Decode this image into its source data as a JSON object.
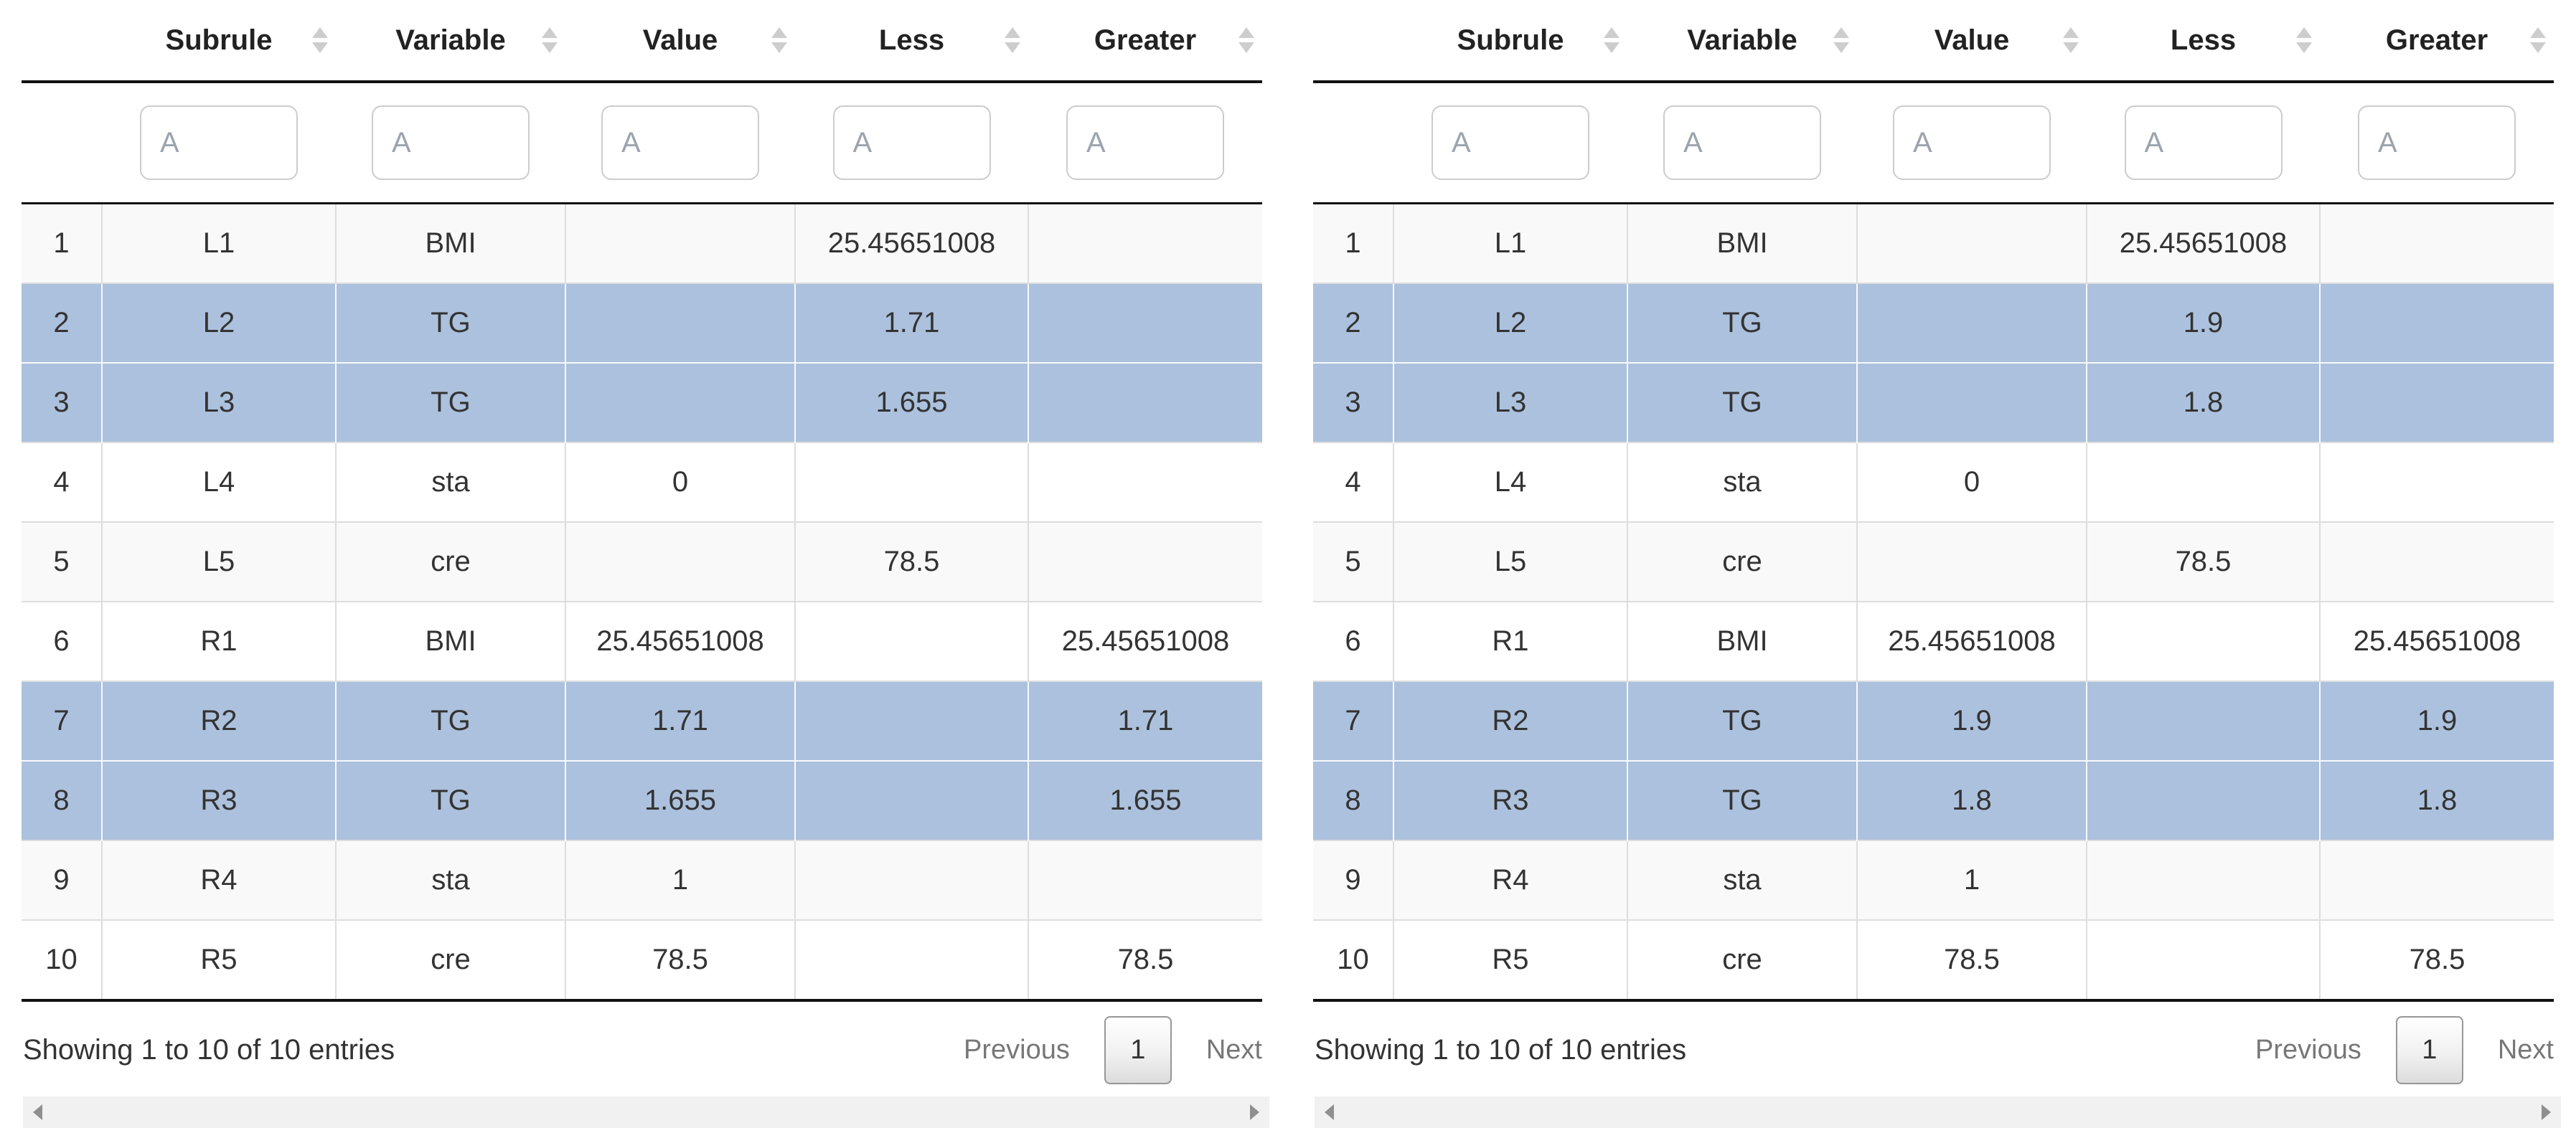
{
  "columns": [
    {
      "key": "index",
      "label": ""
    },
    {
      "key": "subrule",
      "label": "Subrule"
    },
    {
      "key": "variable",
      "label": "Variable"
    },
    {
      "key": "value",
      "label": "Value"
    },
    {
      "key": "less",
      "label": "Less"
    },
    {
      "key": "greater",
      "label": "Greater"
    }
  ],
  "filter_placeholder": "A",
  "panels": [
    {
      "name": "left",
      "rows": [
        {
          "index": "1",
          "subrule": "L1",
          "variable": "BMI",
          "value": "",
          "less": "25.45651008",
          "greater": "",
          "selected": false
        },
        {
          "index": "2",
          "subrule": "L2",
          "variable": "TG",
          "value": "",
          "less": "1.71",
          "greater": "",
          "selected": true
        },
        {
          "index": "3",
          "subrule": "L3",
          "variable": "TG",
          "value": "",
          "less": "1.655",
          "greater": "",
          "selected": true
        },
        {
          "index": "4",
          "subrule": "L4",
          "variable": "sta",
          "value": "0",
          "less": "",
          "greater": "",
          "selected": false
        },
        {
          "index": "5",
          "subrule": "L5",
          "variable": "cre",
          "value": "",
          "less": "78.5",
          "greater": "",
          "selected": false
        },
        {
          "index": "6",
          "subrule": "R1",
          "variable": "BMI",
          "value": "25.45651008",
          "less": "",
          "greater": "25.45651008",
          "selected": false
        },
        {
          "index": "7",
          "subrule": "R2",
          "variable": "TG",
          "value": "1.71",
          "less": "",
          "greater": "1.71",
          "selected": true
        },
        {
          "index": "8",
          "subrule": "R3",
          "variable": "TG",
          "value": "1.655",
          "less": "",
          "greater": "1.655",
          "selected": true
        },
        {
          "index": "9",
          "subrule": "R4",
          "variable": "sta",
          "value": "1",
          "less": "",
          "greater": "",
          "selected": false
        },
        {
          "index": "10",
          "subrule": "R5",
          "variable": "cre",
          "value": "78.5",
          "less": "",
          "greater": "78.5",
          "selected": false
        }
      ],
      "info": "Showing 1 to 10 of 10 entries",
      "pagination": {
        "previous": "Previous",
        "current": "1",
        "next": "Next"
      }
    },
    {
      "name": "right",
      "rows": [
        {
          "index": "1",
          "subrule": "L1",
          "variable": "BMI",
          "value": "",
          "less": "25.45651008",
          "greater": "",
          "selected": false
        },
        {
          "index": "2",
          "subrule": "L2",
          "variable": "TG",
          "value": "",
          "less": "1.9",
          "greater": "",
          "selected": true
        },
        {
          "index": "3",
          "subrule": "L3",
          "variable": "TG",
          "value": "",
          "less": "1.8",
          "greater": "",
          "selected": true
        },
        {
          "index": "4",
          "subrule": "L4",
          "variable": "sta",
          "value": "0",
          "less": "",
          "greater": "",
          "selected": false
        },
        {
          "index": "5",
          "subrule": "L5",
          "variable": "cre",
          "value": "",
          "less": "78.5",
          "greater": "",
          "selected": false
        },
        {
          "index": "6",
          "subrule": "R1",
          "variable": "BMI",
          "value": "25.45651008",
          "less": "",
          "greater": "25.45651008",
          "selected": false
        },
        {
          "index": "7",
          "subrule": "R2",
          "variable": "TG",
          "value": "1.9",
          "less": "",
          "greater": "1.9",
          "selected": true
        },
        {
          "index": "8",
          "subrule": "R3",
          "variable": "TG",
          "value": "1.8",
          "less": "",
          "greater": "1.8",
          "selected": true
        },
        {
          "index": "9",
          "subrule": "R4",
          "variable": "sta",
          "value": "1",
          "less": "",
          "greater": "",
          "selected": false
        },
        {
          "index": "10",
          "subrule": "R5",
          "variable": "cre",
          "value": "78.5",
          "less": "",
          "greater": "78.5",
          "selected": false
        }
      ],
      "info": "Showing 1 to 10 of 10 entries",
      "pagination": {
        "previous": "Previous",
        "current": "1",
        "next": "Next"
      }
    }
  ],
  "colors": {
    "selected_row": "#acc1dd",
    "stripe_row": "#f9f9f9",
    "header_border": "#111111",
    "grid_line": "#dddddd",
    "scrollbar_track": "#f1f1f1"
  }
}
